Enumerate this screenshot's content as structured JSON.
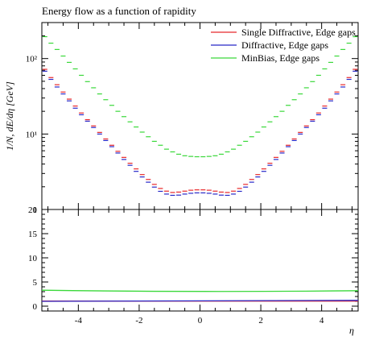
{
  "chart_data": [
    {
      "type": "line",
      "title": "Energy flow as a function of rapidity",
      "xlabel": "η",
      "ylabel": "1/N, dE/dη [GeV]",
      "xlim": [
        -5.2,
        5.2
      ],
      "ylim": [
        1,
        300
      ],
      "yscale": "log",
      "y_ticks": [
        1,
        10,
        100
      ],
      "y_tick_labels": [
        "1",
        "10¹",
        "10²"
      ],
      "x": [
        -5.1,
        -4.9,
        -4.7,
        -4.5,
        -4.3,
        -4.1,
        -3.9,
        -3.7,
        -3.5,
        -3.3,
        -3.1,
        -2.9,
        -2.7,
        -2.5,
        -2.3,
        -2.1,
        -1.9,
        -1.7,
        -1.5,
        -1.3,
        -1.1,
        -0.9,
        -0.7,
        -0.5,
        -0.3,
        -0.1,
        0.1,
        0.3,
        0.5,
        0.7,
        0.9,
        1.1,
        1.3,
        1.5,
        1.7,
        1.9,
        2.1,
        2.3,
        2.5,
        2.7,
        2.9,
        3.1,
        3.3,
        3.5,
        3.7,
        3.9,
        4.1,
        4.3,
        4.5,
        4.7,
        4.9,
        5.1
      ],
      "legend_position": "top-right",
      "series": [
        {
          "name": "Single Diffractive, Edge gaps",
          "color": "#e8282b",
          "values": [
            72,
            56,
            45,
            36,
            29,
            23.5,
            19,
            15.5,
            12.8,
            10.5,
            8.6,
            7.1,
            5.9,
            4.9,
            4.1,
            3.45,
            2.9,
            2.5,
            2.15,
            1.9,
            1.75,
            1.68,
            1.7,
            1.75,
            1.8,
            1.82,
            1.82,
            1.8,
            1.75,
            1.7,
            1.68,
            1.75,
            1.9,
            2.15,
            2.5,
            2.9,
            3.45,
            4.1,
            4.9,
            5.9,
            7.1,
            8.6,
            10.5,
            12.8,
            15.5,
            19,
            23.5,
            29,
            36,
            45,
            56,
            72
          ]
        },
        {
          "name": "Diffractive, Edge gaps",
          "color": "#2828c8",
          "values": [
            68,
            53,
            42,
            34,
            27.5,
            22,
            18,
            14.8,
            12.2,
            10,
            8.2,
            6.8,
            5.6,
            4.6,
            3.85,
            3.2,
            2.7,
            2.3,
            1.98,
            1.74,
            1.6,
            1.54,
            1.55,
            1.6,
            1.64,
            1.66,
            1.66,
            1.64,
            1.6,
            1.55,
            1.54,
            1.6,
            1.74,
            1.98,
            2.3,
            2.7,
            3.2,
            3.85,
            4.6,
            5.6,
            6.8,
            8.2,
            10,
            12.2,
            14.8,
            18,
            22,
            27.5,
            34,
            42,
            53,
            68
          ]
        },
        {
          "name": "MinBias, Edge gaps",
          "color": "#3ad83a",
          "values": [
            195,
            160,
            132,
            108,
            89,
            73,
            60,
            49.5,
            41,
            34,
            28.5,
            24,
            20,
            17,
            14.5,
            12.4,
            10.6,
            9.2,
            8,
            7.1,
            6.3,
            5.8,
            5.4,
            5.15,
            5.05,
            5,
            5,
            5.05,
            5.15,
            5.4,
            5.8,
            6.3,
            7.1,
            8,
            9.2,
            10.6,
            12.4,
            14.5,
            17,
            20,
            24,
            28.5,
            34,
            41,
            49.5,
            60,
            73,
            89,
            108,
            132,
            160,
            195
          ]
        }
      ]
    },
    {
      "type": "line",
      "title": "",
      "xlabel": "η",
      "ylabel": "",
      "xlim": [
        -5.2,
        5.2
      ],
      "ylim": [
        -1,
        20
      ],
      "y_ticks": [
        0,
        5,
        10,
        15,
        20
      ],
      "y_tick_labels": [
        "0",
        "5",
        "10",
        "15",
        "20"
      ],
      "x_ticks": [
        -4,
        -2,
        0,
        2,
        4
      ],
      "x_tick_labels": [
        "-4",
        "-2",
        "0",
        "2",
        "4"
      ],
      "series": [
        {
          "color": "#e8282b",
          "values_endpoints": [
            1.05,
            1.05
          ]
        },
        {
          "color": "#2828c8",
          "values_endpoints": [
            1.0,
            1.2
          ]
        },
        {
          "color": "#3ad83a",
          "values_endpoints": [
            3.3,
            3.2
          ],
          "values_mid": 3.05
        }
      ]
    }
  ]
}
